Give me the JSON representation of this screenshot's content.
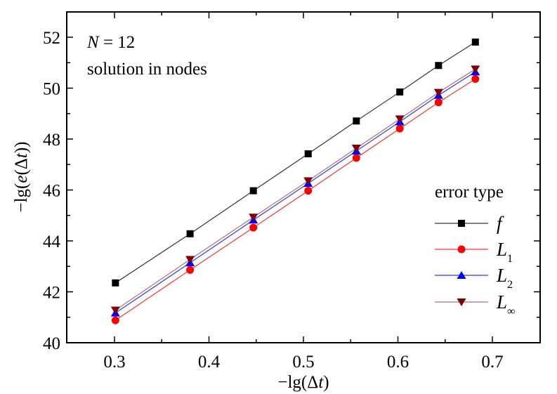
{
  "chart_data": {
    "type": "line",
    "title": "",
    "xlabel": "−lg(Δt)",
    "ylabel": "−lg(e(Δt))",
    "xlim": [
      0.25,
      0.75
    ],
    "ylim": [
      40,
      53
    ],
    "x_ticks": [
      0.3,
      0.4,
      0.5,
      0.6,
      0.7
    ],
    "x_tick_labels": [
      "0.3",
      "0.4",
      "0.5",
      "0.6",
      "0.7"
    ],
    "x_minor_ticks": [
      0.35,
      0.45,
      0.55,
      0.65
    ],
    "y_ticks": [
      40,
      42,
      44,
      46,
      48,
      50,
      52
    ],
    "y_tick_labels": [
      "40",
      "42",
      "44",
      "46",
      "48",
      "50",
      "52"
    ],
    "y_minor_ticks": [
      41,
      43,
      45,
      47,
      49,
      51
    ],
    "grid": false,
    "annotations": [
      "N = 12",
      "solution in nodes"
    ],
    "legend": {
      "title": "error type",
      "position": "lower right"
    },
    "x": [
      0.301,
      0.38,
      0.447,
      0.505,
      0.556,
      0.602,
      0.643,
      0.682
    ],
    "series": [
      {
        "name": "f",
        "marker": "square",
        "color": "#000000",
        "line_color": "#333333",
        "values": [
          42.35,
          44.28,
          45.97,
          47.42,
          48.71,
          49.85,
          50.89,
          51.81
        ]
      },
      {
        "name": "L1",
        "marker": "circle",
        "color": "#ff0000",
        "line_color": "#ff3333",
        "values": [
          40.88,
          42.86,
          44.52,
          45.97,
          47.26,
          48.41,
          49.44,
          50.36
        ]
      },
      {
        "name": "L2",
        "marker": "triangle-up",
        "color": "#0000ff",
        "line_color": "#3333ff",
        "values": [
          41.17,
          43.14,
          44.82,
          46.26,
          47.53,
          48.68,
          49.72,
          50.64
        ]
      },
      {
        "name": "L∞",
        "marker": "triangle-down",
        "color": "#800000",
        "line_color": "#b07070",
        "values": [
          41.28,
          43.27,
          44.93,
          46.36,
          47.64,
          48.79,
          49.83,
          50.75
        ]
      }
    ]
  },
  "annotation": {
    "n_label": "N",
    "n_value": " = 12",
    "subtitle": "solution in nodes"
  },
  "legend": {
    "title": "error type",
    "items": [
      {
        "base": "f",
        "sub": ""
      },
      {
        "base": "L",
        "sub": "1"
      },
      {
        "base": "L",
        "sub": "2"
      },
      {
        "base": "L",
        "sub": "∞"
      }
    ]
  },
  "axes": {
    "xlabel_prefix": "−lg(Δ",
    "xlabel_var": "t",
    "xlabel_suffix": ")",
    "ylabel_prefix": "−lg(",
    "ylabel_var1": "e",
    "ylabel_mid": "(Δ",
    "ylabel_var2": "t",
    "ylabel_suffix": "))"
  }
}
